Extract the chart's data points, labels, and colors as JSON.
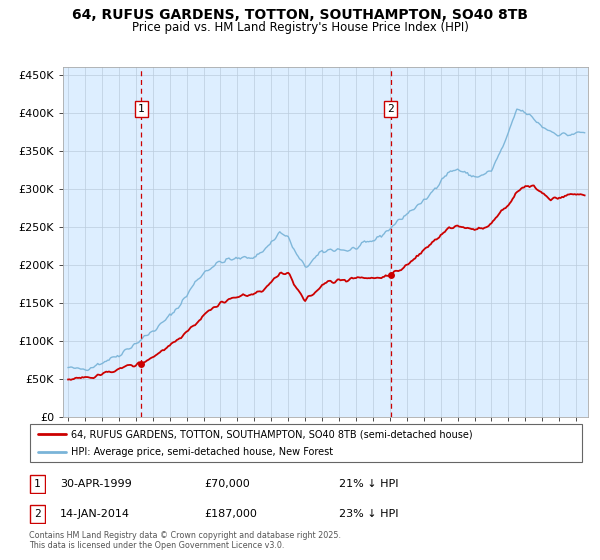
{
  "title": "64, RUFUS GARDENS, TOTTON, SOUTHAMPTON, SO40 8TB",
  "subtitle": "Price paid vs. HM Land Registry's House Price Index (HPI)",
  "legend_line1": "64, RUFUS GARDENS, TOTTON, SOUTHAMPTON, SO40 8TB (semi-detached house)",
  "legend_line2": "HPI: Average price, semi-detached house, New Forest",
  "annotation1_date": "30-APR-1999",
  "annotation1_price": "£70,000",
  "annotation1_hpi": "21% ↓ HPI",
  "annotation2_date": "14-JAN-2014",
  "annotation2_price": "£187,000",
  "annotation2_hpi": "23% ↓ HPI",
  "footer": "Contains HM Land Registry data © Crown copyright and database right 2025.\nThis data is licensed under the Open Government Licence v3.0.",
  "hpi_color": "#7ab4d8",
  "price_color": "#cc0000",
  "bg_color": "#ddeeff",
  "vline_color": "#cc0000",
  "marker_color": "#cc0000",
  "grid_color": "#bbccdd",
  "shade_color": "#cce0f0",
  "ylim": [
    0,
    460000
  ],
  "yticks": [
    0,
    50000,
    100000,
    150000,
    200000,
    250000,
    300000,
    350000,
    400000,
    450000
  ],
  "sale1_year": 1999.33,
  "sale1_price": 70000,
  "sale2_year": 2014.04,
  "sale2_price": 187000,
  "start_year": 1995,
  "end_year": 2025
}
